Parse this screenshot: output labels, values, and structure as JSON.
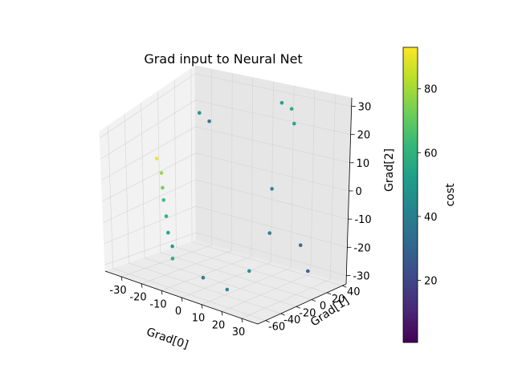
{
  "chart_data": {
    "type": "scatter",
    "projection": "3d",
    "title": "Grad input to Neural Net",
    "xlabel": "Grad[0]",
    "ylabel": "Grad[1]",
    "zlabel": "Grad[2]",
    "xlim": [
      -38,
      38
    ],
    "ylim": [
      -70,
      45
    ],
    "zlim": [
      -33,
      33
    ],
    "xticks": [
      -30,
      -20,
      -10,
      0,
      10,
      20,
      30
    ],
    "yticks": [
      -60,
      -40,
      -20,
      0,
      20,
      40
    ],
    "zticks": [
      -30,
      -20,
      -10,
      0,
      10,
      20,
      30
    ],
    "colorbar": {
      "label": "cost",
      "min": 0.5,
      "max": 93,
      "ticks": [
        20,
        40,
        60,
        80
      ],
      "colormap": "viridis"
    },
    "colormap_stops": [
      "#440154",
      "#482878",
      "#3e4989",
      "#31688e",
      "#26828e",
      "#1f9e89",
      "#35b779",
      "#6ece58",
      "#b5de2b",
      "#fde725"
    ],
    "points": [
      {
        "x": -35,
        "y": -10,
        "z": 8,
        "c": 90
      },
      {
        "x": -32,
        "y": -12,
        "z": 3,
        "c": 78
      },
      {
        "x": -30,
        "y": -16,
        "z": -2,
        "c": 72
      },
      {
        "x": -28,
        "y": -20,
        "z": -6,
        "c": 62
      },
      {
        "x": -26,
        "y": -22,
        "z": -12,
        "c": 58
      },
      {
        "x": -24,
        "y": -25,
        "z": -18,
        "c": 52
      },
      {
        "x": -20,
        "y": -30,
        "z": -22,
        "c": 48
      },
      {
        "x": -18,
        "y": -35,
        "z": -26,
        "c": 55
      },
      {
        "x": -22,
        "y": 10,
        "z": 25,
        "c": 45
      },
      {
        "x": -18,
        "y": 12,
        "z": 22,
        "c": 35
      },
      {
        "x": 10,
        "y": 30,
        "z": 30,
        "c": 50
      },
      {
        "x": 14,
        "y": 32,
        "z": 28,
        "c": 55
      },
      {
        "x": 20,
        "y": 20,
        "z": 26,
        "c": 52
      },
      {
        "x": 25,
        "y": -20,
        "z": 10,
        "c": 40
      },
      {
        "x": 28,
        "y": -30,
        "z": -5,
        "c": 38
      },
      {
        "x": 22,
        "y": -40,
        "z": -20,
        "c": 45
      },
      {
        "x": 15,
        "y": -50,
        "z": -28,
        "c": 40
      },
      {
        "x": 5,
        "y": -55,
        "z": -25,
        "c": 35
      },
      {
        "x": 30,
        "y": 5,
        "z": -15,
        "c": 30
      },
      {
        "x": 32,
        "y": 10,
        "z": -25,
        "c": 28
      }
    ]
  }
}
